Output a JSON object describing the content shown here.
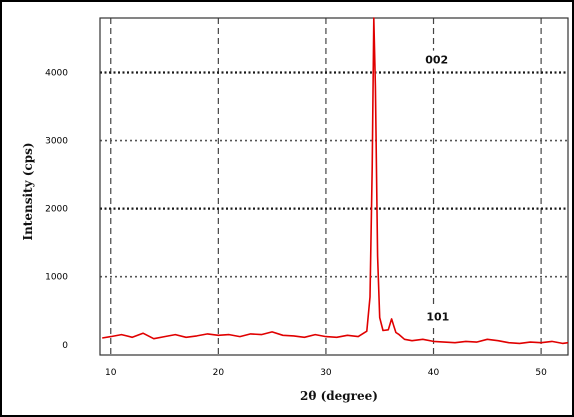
{
  "chart_data": {
    "type": "line",
    "title": "",
    "xlabel": "2θ (degree)",
    "ylabel": "Intensity (cps)",
    "xlim": [
      9,
      52.5
    ],
    "ylim": [
      -150,
      4800
    ],
    "x_ticks": [
      "10",
      "20",
      "30",
      "40",
      "50"
    ],
    "y_ticks": [
      "0",
      "1000",
      "2000",
      "3000",
      "4000"
    ],
    "grid": true,
    "legend": "none",
    "line_color": "#e00000",
    "annotations": [
      {
        "text": "002",
        "x": 40.3,
        "y": 4130
      },
      {
        "text": "101",
        "x": 40.4,
        "y": 360
      }
    ],
    "series": [
      {
        "x": [
          9.2,
          10,
          11,
          12,
          13,
          14,
          15,
          16,
          17,
          18,
          19,
          20,
          21,
          22,
          23,
          24,
          25,
          26,
          27,
          28,
          29,
          30,
          31,
          32,
          33,
          33.8,
          34.1,
          34.3,
          34.45,
          34.6,
          34.8,
          35.0,
          35.3,
          35.8,
          36.1,
          36.3,
          36.5,
          36.8,
          37.3,
          38,
          39,
          40,
          41,
          42,
          43,
          44,
          45,
          46,
          47,
          48,
          49,
          50,
          51,
          52,
          52.5
        ],
        "y": [
          100,
          120,
          150,
          110,
          170,
          90,
          120,
          150,
          110,
          130,
          160,
          140,
          150,
          120,
          160,
          150,
          190,
          140,
          130,
          110,
          150,
          120,
          110,
          140,
          120,
          200,
          700,
          2600,
          4800,
          3800,
          1300,
          400,
          210,
          220,
          380,
          280,
          180,
          150,
          80,
          60,
          80,
          50,
          40,
          30,
          50,
          40,
          80,
          60,
          30,
          20,
          40,
          30,
          50,
          20,
          30
        ]
      }
    ]
  }
}
